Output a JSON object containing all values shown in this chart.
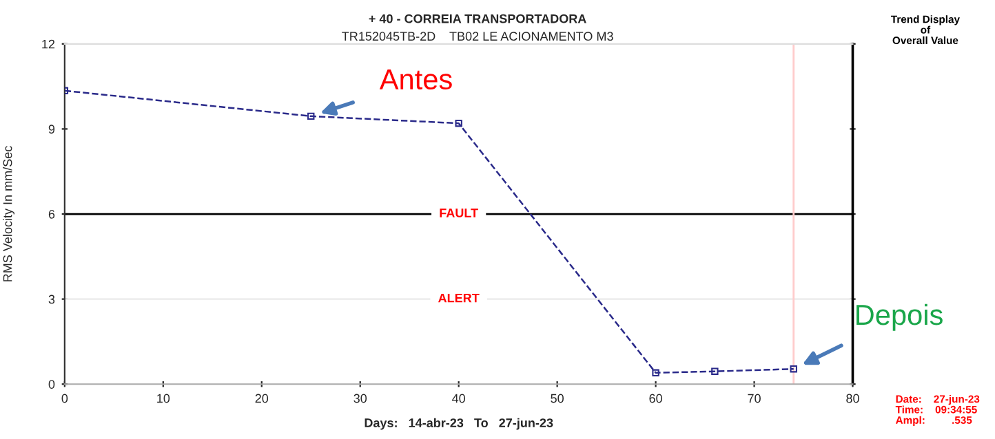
{
  "chart_data": {
    "type": "line",
    "title": "+ 40 - CORREIA TRANSPORTADORA",
    "subtitle": "TR152045TB-2D    TB02 LE ACIONAMENTO M3",
    "xlabel": "Days:   14-abr-23   To   27-jun-23",
    "ylabel": "RMS Velocity In mm/Sec",
    "x": [
      0,
      25,
      40,
      60,
      66,
      74
    ],
    "series": [
      {
        "color": "#2a2a8a",
        "values": [
          10.35,
          9.45,
          9.2,
          0.4,
          0.45,
          0.535
        ]
      }
    ],
    "xlim": [
      0,
      80
    ],
    "xticks": [
      0,
      10,
      20,
      30,
      40,
      50,
      60,
      70,
      80
    ],
    "ylim": [
      0,
      12
    ],
    "yticks": [
      0,
      3,
      6,
      9,
      12
    ],
    "ref_lines": [
      {
        "axis": "y",
        "value": 6,
        "label": "FAULT",
        "color": "#000000"
      },
      {
        "axis": "y",
        "value": 3,
        "label": "ALERT",
        "color": "#eeeeee"
      },
      {
        "axis": "x",
        "value": 74,
        "color": "#ffcccc"
      }
    ],
    "annotations": [
      "Trend Display\nof\nOverall Value",
      "Date:    27-jun-23\nTime:    09:34:55\nAmpl:         .535",
      {
        "text": "Antes",
        "x": 25,
        "y": 9.45
      },
      {
        "text": "Depois",
        "x": 74,
        "y": 0.535
      }
    ],
    "marker": "square",
    "line_style": "dashed",
    "grid": false,
    "legend": false
  }
}
